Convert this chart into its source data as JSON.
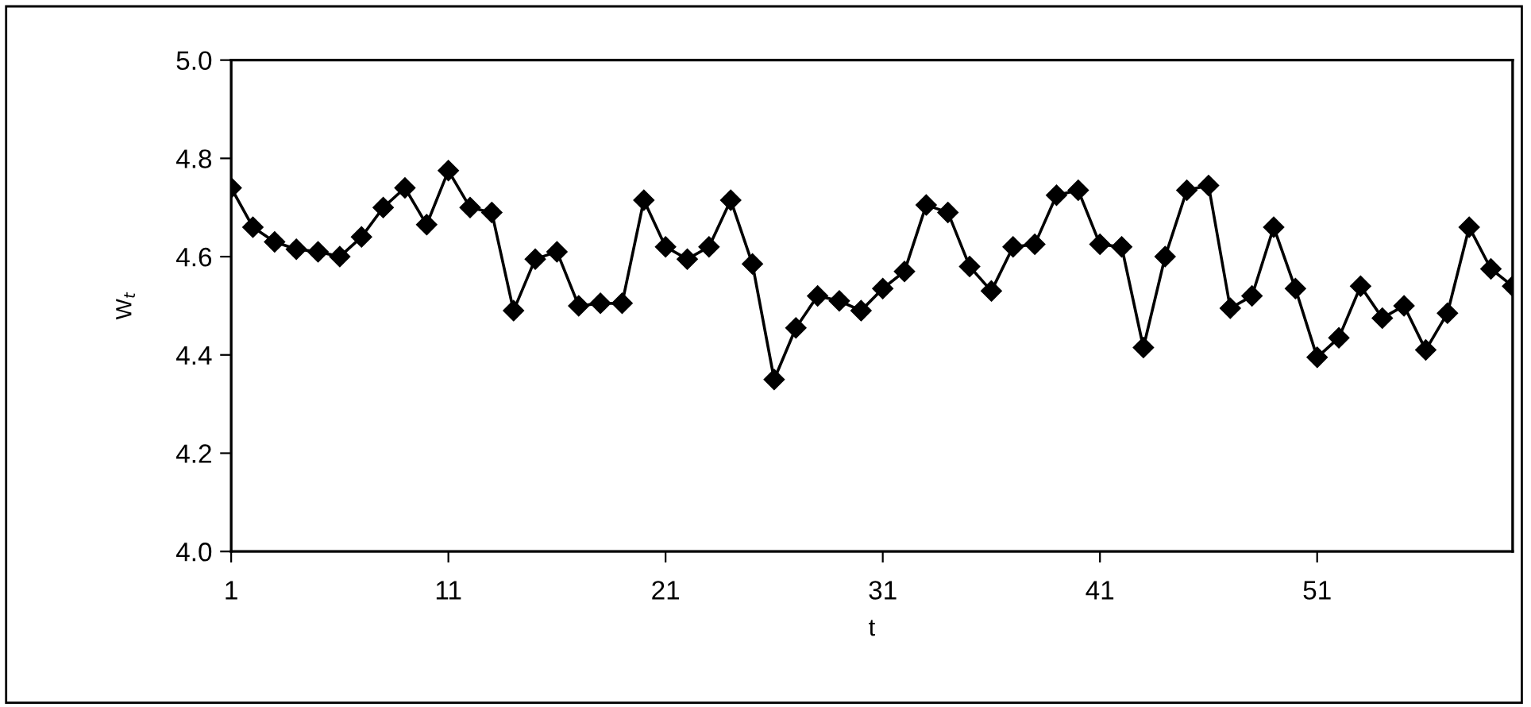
{
  "chart_data": {
    "type": "line",
    "xlabel": "t",
    "ylabel": "W$_{t}$",
    "categories": [
      "1",
      null,
      null,
      null,
      null,
      null,
      null,
      null,
      null,
      null,
      "11",
      null,
      null,
      null,
      null,
      null,
      null,
      null,
      null,
      null,
      "21",
      null,
      null,
      null,
      null,
      null,
      null,
      null,
      null,
      null,
      "31",
      null,
      null,
      null,
      null,
      null,
      null,
      null,
      null,
      null,
      "41",
      null,
      null,
      null,
      null,
      null,
      null,
      null,
      null,
      null,
      "51",
      null,
      null,
      null,
      null,
      null,
      null,
      null,
      null,
      null
    ],
    "series": [
      {
        "color": "#000000",
        "values": [
          4.74,
          4.66,
          4.63,
          4.615,
          4.61,
          4.6,
          4.64,
          4.7,
          4.74,
          4.665,
          4.775,
          4.7,
          4.69,
          4.49,
          4.595,
          4.61,
          4.5,
          4.505,
          4.505,
          4.715,
          4.62,
          4.595,
          4.62,
          4.715,
          4.585,
          4.35,
          4.455,
          4.52,
          4.51,
          4.49,
          4.535,
          4.57,
          4.705,
          4.69,
          4.58,
          4.53,
          4.62,
          4.625,
          4.725,
          4.735,
          4.625,
          4.62,
          4.415,
          4.6,
          4.735,
          4.745,
          4.495,
          4.52,
          4.66,
          4.535,
          4.395,
          4.435,
          4.54,
          4.475,
          4.5,
          4.41,
          4.485,
          4.66,
          4.575,
          4.54
        ]
      }
    ],
    "ylim": [
      4.0,
      5.0
    ],
    "yticks": [
      {
        "value": 4.0,
        "label": "4.0"
      },
      {
        "value": 4.2,
        "label": "4.2"
      },
      {
        "value": 4.4,
        "label": "4.4"
      },
      {
        "value": 4.6,
        "label": "4.6"
      },
      {
        "value": 4.8,
        "label": "4.8"
      },
      {
        "value": 5.0,
        "label": "5.0"
      }
    ],
    "marker": "diamond",
    "line_style": "solid",
    "grid": false,
    "legend": false
  }
}
